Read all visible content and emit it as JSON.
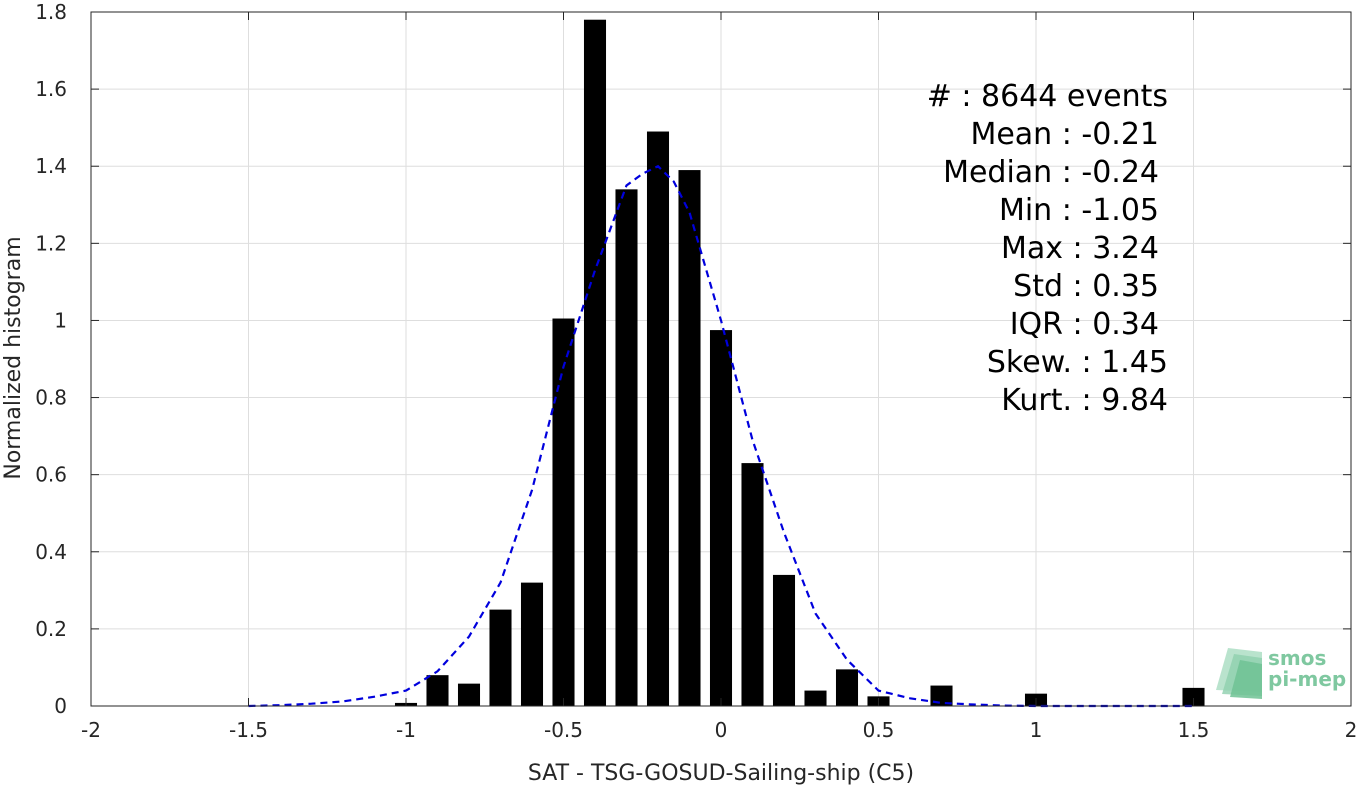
{
  "chart_data": {
    "type": "bar",
    "xlabel": "SAT - TSG-GOSUD-Sailing-ship (C5)",
    "ylabel": "Normalized histogram",
    "xlim": [
      -2,
      2
    ],
    "ylim": [
      0,
      1.8
    ],
    "xticks": [
      -2,
      -1.5,
      -1,
      -0.5,
      0,
      0.5,
      1,
      1.5,
      2
    ],
    "xtick_labels": [
      "-2",
      "-1.5",
      "-1",
      "-0.5",
      "0",
      "0.5",
      "1",
      "1.5",
      "2"
    ],
    "yticks": [
      0,
      0.2,
      0.4,
      0.6,
      0.8,
      1,
      1.2,
      1.4,
      1.6,
      1.8
    ],
    "ytick_labels": [
      "0",
      "0.2",
      "0.4",
      "0.6",
      "0.8",
      "1",
      "1.2",
      "1.4",
      "1.6",
      "1.8"
    ],
    "grid": true,
    "bar_width": 0.07,
    "bar_color": "#000000",
    "bars": [
      {
        "x": -1.0,
        "y": 0.008
      },
      {
        "x": -0.9,
        "y": 0.08
      },
      {
        "x": -0.8,
        "y": 0.058
      },
      {
        "x": -0.7,
        "y": 0.25
      },
      {
        "x": -0.6,
        "y": 0.32
      },
      {
        "x": -0.5,
        "y": 1.005
      },
      {
        "x": -0.4,
        "y": 1.78
      },
      {
        "x": -0.3,
        "y": 1.34
      },
      {
        "x": -0.2,
        "y": 1.49
      },
      {
        "x": -0.1,
        "y": 1.39
      },
      {
        "x": 0.0,
        "y": 0.975
      },
      {
        "x": 0.1,
        "y": 0.63
      },
      {
        "x": 0.2,
        "y": 0.34
      },
      {
        "x": 0.3,
        "y": 0.04
      },
      {
        "x": 0.4,
        "y": 0.095
      },
      {
        "x": 0.5,
        "y": 0.025
      },
      {
        "x": 0.7,
        "y": 0.053
      },
      {
        "x": 1.0,
        "y": 0.032
      },
      {
        "x": 1.5,
        "y": 0.047
      }
    ],
    "fit_curve": {
      "style": "dashed",
      "color": "#0000dd",
      "x": [
        -1.5,
        -1.4,
        -1.3,
        -1.2,
        -1.1,
        -1.0,
        -0.9,
        -0.8,
        -0.7,
        -0.6,
        -0.5,
        -0.4,
        -0.3,
        -0.25,
        -0.2,
        -0.15,
        -0.1,
        0.0,
        0.1,
        0.2,
        0.3,
        0.4,
        0.5,
        0.6,
        0.7,
        0.8,
        0.9,
        1.0,
        1.1,
        1.2,
        1.3,
        1.4,
        1.5
      ],
      "y": [
        0.0,
        0.002,
        0.006,
        0.012,
        0.024,
        0.04,
        0.09,
        0.18,
        0.32,
        0.56,
        0.88,
        1.13,
        1.35,
        1.38,
        1.4,
        1.36,
        1.28,
        1.0,
        0.69,
        0.45,
        0.24,
        0.12,
        0.04,
        0.02,
        0.008,
        0.004,
        0.001,
        0.0,
        0.0,
        0.0,
        0.0,
        0.0,
        0.0
      ]
    },
    "stats": {
      "count": "#  : 8644 events",
      "mean": "Mean : -0.21",
      "median": "Median : -0.24",
      "min": "Min : -1.05",
      "max": "Max : 3.24",
      "std": "Std : 0.35",
      "iqr": "IQR : 0.34",
      "skew": "Skew. : 1.45",
      "kurt": "Kurt. : 9.84"
    }
  },
  "logo": {
    "line1": "smos",
    "line2": "pi-mep",
    "color": "#7fc8a0"
  }
}
